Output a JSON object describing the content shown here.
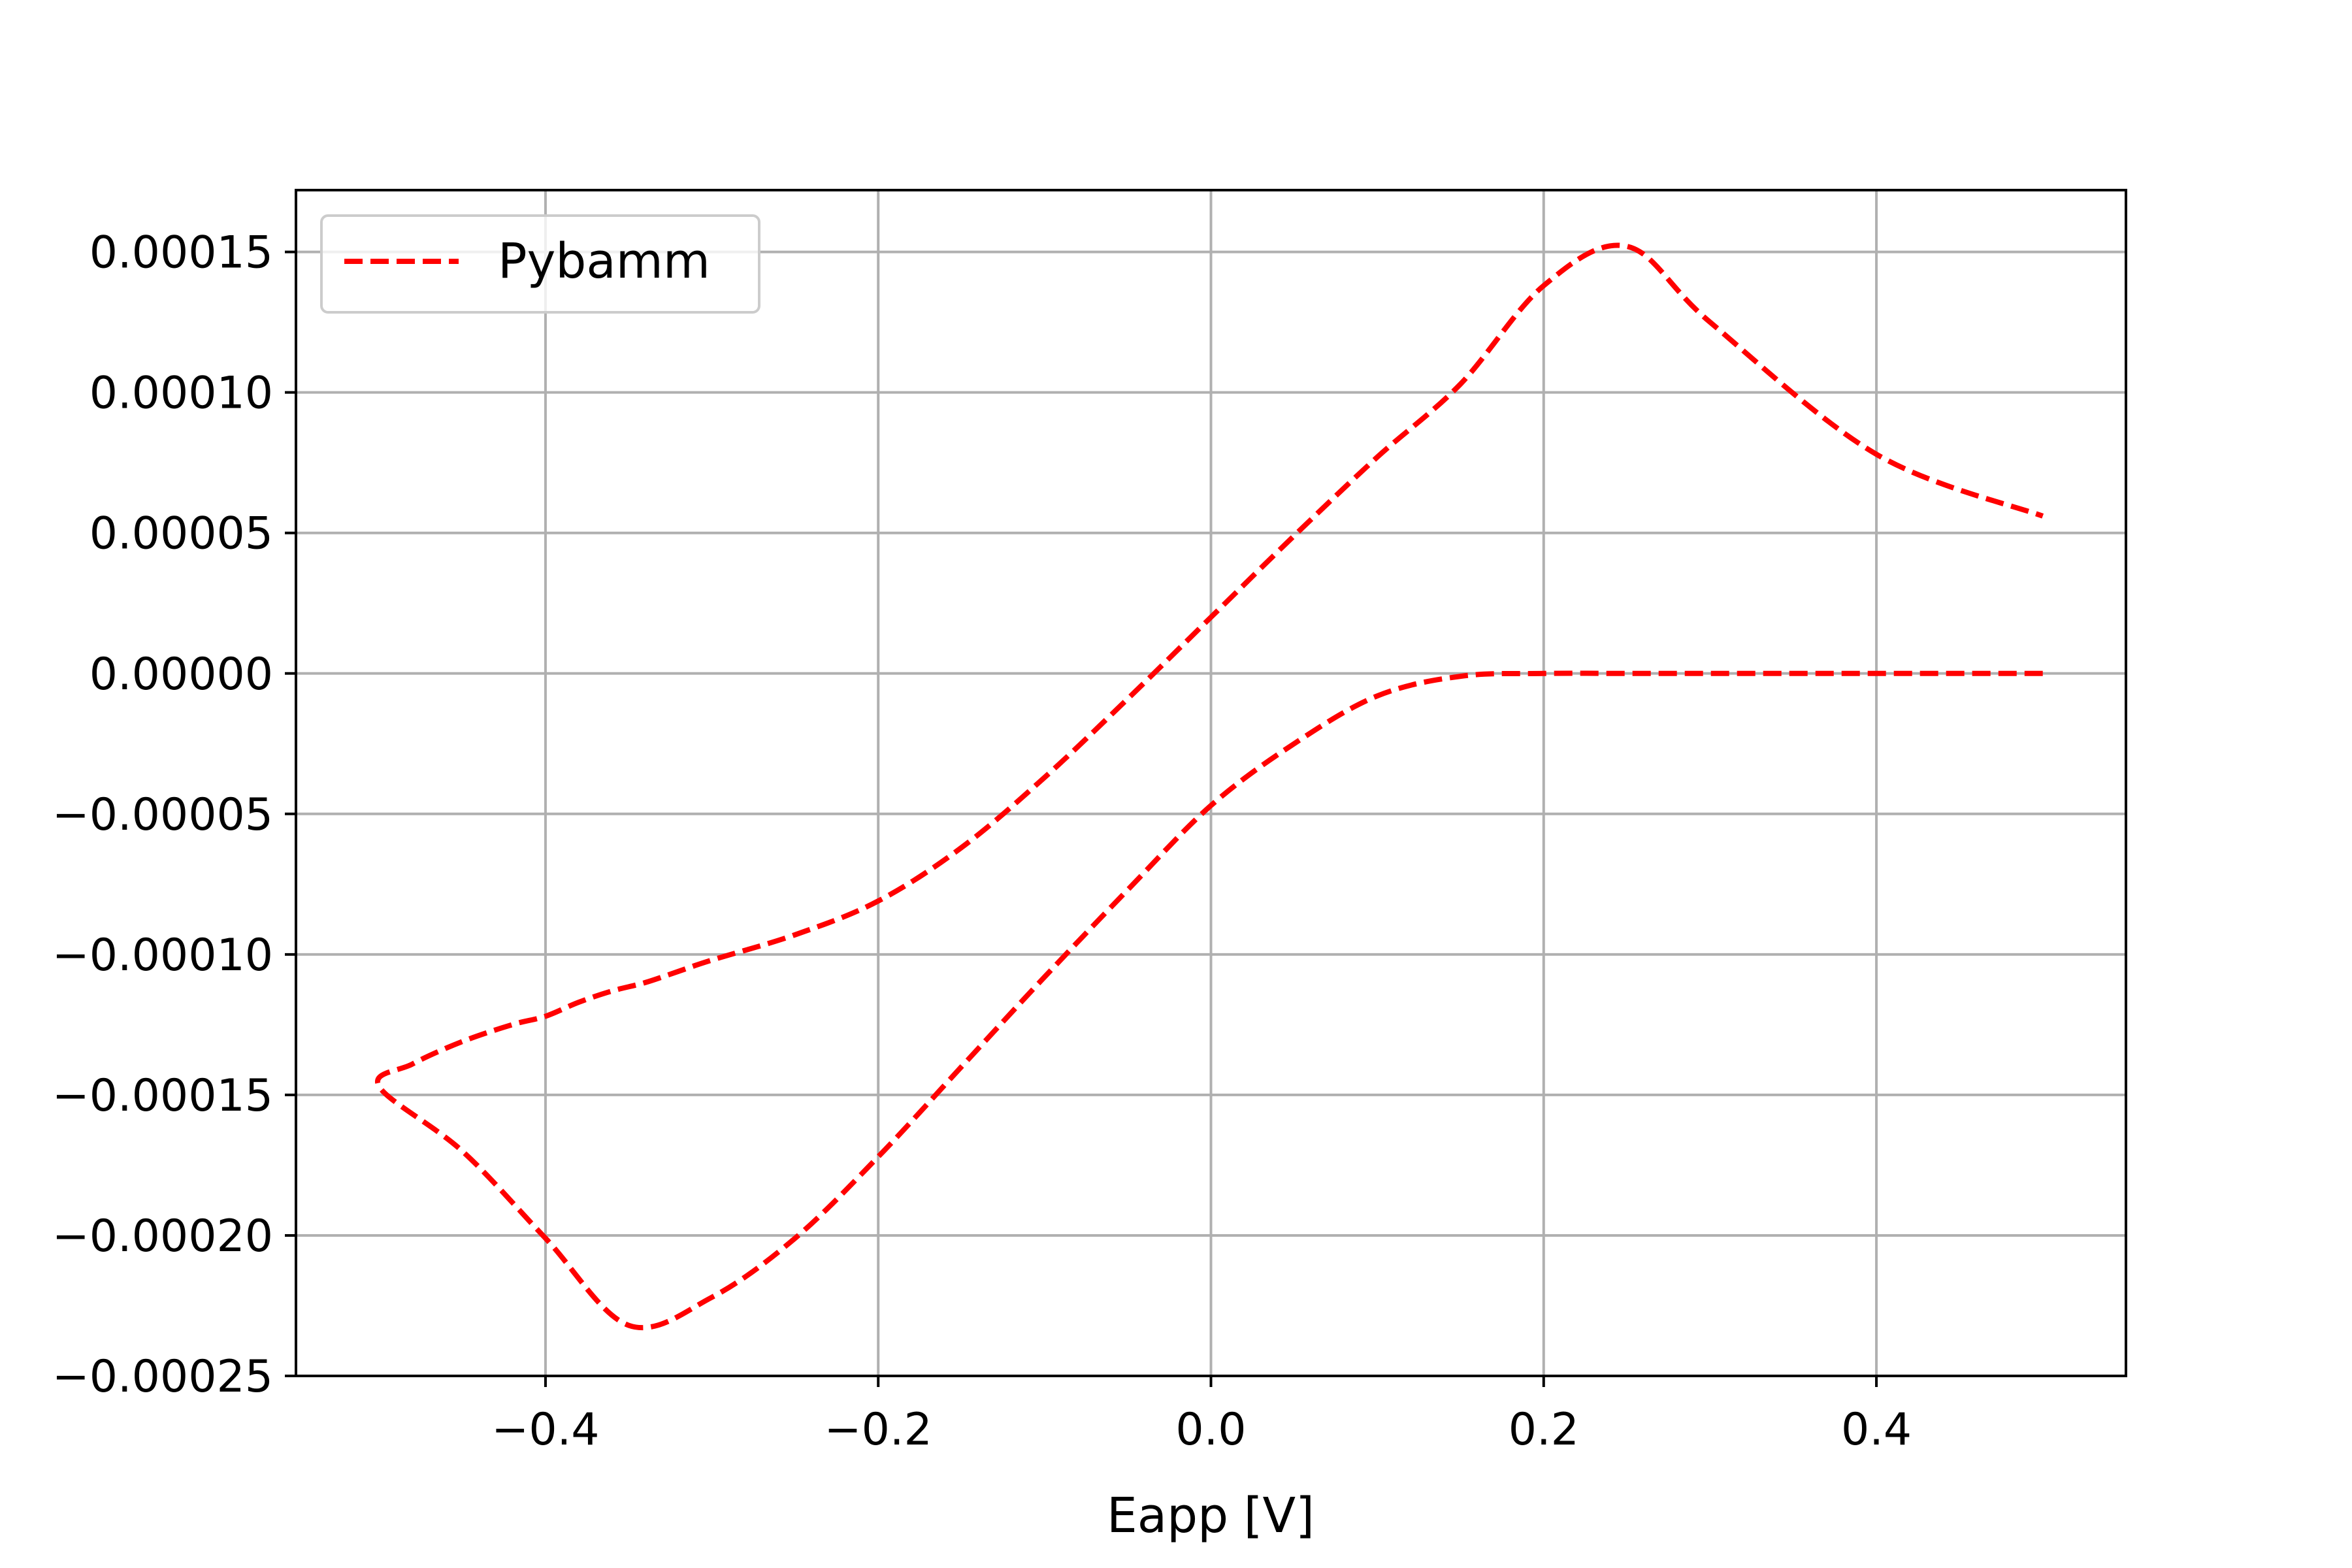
{
  "chart_data": {
    "type": "line",
    "title": "",
    "xlabel": "Eapp [V]",
    "ylabel": "",
    "xlim": [
      -0.55,
      0.55
    ],
    "ylim": [
      -0.00025,
      0.000172
    ],
    "grid": true,
    "legend_position": "top-left",
    "xticks": [
      -0.4,
      -0.2,
      0.0,
      0.2,
      0.4
    ],
    "xtick_labels": [
      "−0.4",
      "−0.2",
      "0.0",
      "0.2",
      "0.4"
    ],
    "yticks": [
      0.00015,
      0.0001,
      5e-05,
      0.0,
      -5e-05,
      -0.0001,
      -0.00015,
      -0.0002,
      -0.00025
    ],
    "ytick_labels": [
      "0.00015",
      "0.00010",
      "0.00005",
      "0.00000",
      "−0.00005",
      "−0.00010",
      "−0.00015",
      "−0.00020",
      "−0.00025"
    ],
    "series": [
      {
        "name": "Pybamm",
        "color": "#ff0000",
        "line_style": "dashed",
        "x": [
          0.5,
          0.45,
          0.4,
          0.35,
          0.3,
          0.25,
          0.2,
          0.15,
          0.1,
          0.05,
          0.0,
          -0.05,
          -0.1,
          -0.15,
          -0.2,
          -0.25,
          -0.3,
          -0.35,
          -0.4,
          -0.45,
          -0.5,
          -0.48,
          -0.45,
          -0.42,
          -0.4,
          -0.38,
          -0.36,
          -0.34,
          -0.32,
          -0.3,
          -0.25,
          -0.2,
          -0.15,
          -0.1,
          -0.05,
          0.0,
          0.05,
          0.1,
          0.15,
          0.2,
          0.25,
          0.3,
          0.4,
          0.5
        ],
        "y": [
          0.0,
          0.0,
          0.0,
          0.0,
          0.0,
          0.0,
          0.0,
          -1e-06,
          -8e-06,
          -2.5e-05,
          -4.7e-05,
          -7.7e-05,
          -0.000108,
          -0.00014,
          -0.000172,
          -0.000201,
          -0.000222,
          -0.000232,
          -0.000201,
          -0.00017,
          -0.000147,
          -0.000139,
          -0.000131,
          -0.000125,
          -0.000122,
          -0.000117,
          -0.000113,
          -0.00011,
          -0.000106,
          -0.000102,
          -9.3e-05,
          -8.1e-05,
          -6.2e-05,
          -3.7e-05,
          -9e-06,
          2e-05,
          4.9e-05,
          7.7e-05,
          0.000103,
          0.000138,
          0.000152,
          0.000125,
          7.8e-05,
          5.6e-05
        ]
      }
    ]
  }
}
